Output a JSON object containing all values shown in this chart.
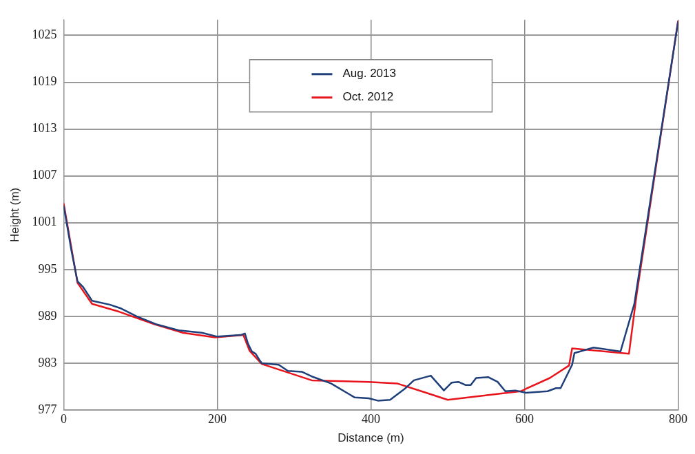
{
  "chart_data": {
    "type": "line",
    "xlabel": "Distance (m)",
    "ylabel": "Height (m)",
    "xlim": [
      0,
      800
    ],
    "xticks": [
      0,
      200,
      400,
      600,
      800
    ],
    "ylim": [
      977,
      1027
    ],
    "yticks": [
      977,
      983,
      989,
      995,
      1001,
      1007,
      1013,
      1019,
      1025
    ],
    "grid": true,
    "legend": "top",
    "marker": "none",
    "line_style": "solid",
    "series": [
      {
        "name": "Aug. 2013",
        "color": "#1f3f7a",
        "x": [
          0,
          10,
          18,
          25,
          37,
          60,
          75,
          95,
          120,
          150,
          180,
          200,
          230,
          236,
          240,
          245,
          250,
          255,
          258,
          280,
          292,
          310,
          323,
          348,
          379,
          397,
          409,
          425,
          444,
          456,
          478,
          495,
          505,
          514,
          523,
          530,
          537,
          553,
          565,
          575,
          588,
          602,
          630,
          641,
          647,
          662,
          665,
          690,
          725,
          743,
          800
        ],
        "values": [
          1003.2,
          997.5,
          993.5,
          992.8,
          991,
          990.5,
          990,
          989,
          988,
          987.2,
          986.9,
          986.4,
          986.6,
          986.8,
          985.5,
          984.5,
          984.2,
          983.4,
          983,
          982.8,
          982,
          981.9,
          981.3,
          980.4,
          978.6,
          978.5,
          978.2,
          978.3,
          979.7,
          980.8,
          981.4,
          979.5,
          980.5,
          980.6,
          980.2,
          980.2,
          981.1,
          981.2,
          980.6,
          979.4,
          979.5,
          979.2,
          979.4,
          979.8,
          979.8,
          982.8,
          984.3,
          985,
          984.5,
          990.6,
          1026.8
        ]
      },
      {
        "name": "Oct. 2012",
        "color": "#e8141c",
        "x": [
          0,
          18,
          37,
          72,
          118,
          155,
          197,
          234,
          242,
          258,
          323,
          397,
          434,
          472,
          500,
          595,
          633,
          658,
          662,
          736,
          746,
          800
        ],
        "values": [
          1003.5,
          993.3,
          990.6,
          989.6,
          988,
          986.9,
          986.3,
          986.6,
          984.6,
          982.9,
          980.8,
          980.6,
          980.4,
          979.2,
          978.3,
          979.4,
          981.1,
          982.7,
          984.9,
          984.2,
          991.8,
          1026.9
        ]
      }
    ]
  }
}
